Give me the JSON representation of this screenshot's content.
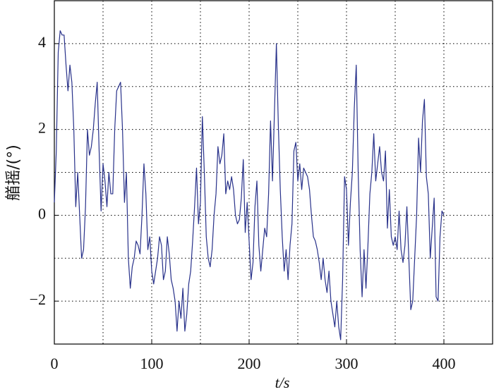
{
  "chart_data": {
    "type": "line",
    "xlabel": "t/s",
    "ylabel": "艏摇/(°)",
    "xlim": [
      0,
      450
    ],
    "ylim": [
      -3,
      5
    ],
    "xticks": [
      0,
      100,
      200,
      300,
      400
    ],
    "yticks": [
      -2,
      0,
      2,
      4
    ],
    "xgrid": [
      50,
      100,
      150,
      200,
      250,
      300,
      350,
      400
    ],
    "ygrid": [
      -2,
      -1,
      0,
      1,
      2,
      3,
      4
    ],
    "grid": true,
    "x": [
      0,
      2,
      4,
      6,
      8,
      10,
      12,
      14,
      16,
      18,
      20,
      22,
      24,
      26,
      28,
      30,
      32,
      34,
      36,
      38,
      40,
      42,
      44,
      46,
      48,
      50,
      52,
      54,
      56,
      58,
      60,
      62,
      64,
      66,
      68,
      70,
      72,
      74,
      76,
      78,
      80,
      82,
      84,
      86,
      88,
      90,
      92,
      94,
      96,
      98,
      100,
      102,
      104,
      106,
      108,
      110,
      112,
      114,
      116,
      118,
      120,
      122,
      124,
      126,
      128,
      130,
      132,
      134,
      136,
      138,
      140,
      142,
      144,
      146,
      148,
      150,
      152,
      154,
      156,
      158,
      160,
      162,
      164,
      166,
      168,
      170,
      172,
      174,
      176,
      178,
      180,
      182,
      184,
      186,
      188,
      190,
      192,
      194,
      196,
      198,
      200,
      202,
      204,
      206,
      208,
      210,
      212,
      214,
      216,
      218,
      220,
      222,
      224,
      226,
      228,
      230,
      232,
      234,
      236,
      238,
      240,
      242,
      244,
      246,
      248,
      250,
      252,
      254,
      256,
      258,
      260,
      262,
      264,
      266,
      268,
      270,
      272,
      274,
      276,
      278,
      280,
      282,
      284,
      286,
      288,
      290,
      292,
      294,
      296,
      298,
      300,
      302,
      304,
      306,
      308,
      310,
      312,
      314,
      316,
      318,
      320,
      322,
      324,
      326,
      328,
      330,
      332,
      334,
      336,
      338,
      340,
      342,
      344,
      346,
      348,
      350,
      352,
      354,
      356,
      358,
      360,
      362,
      364,
      366,
      368,
      370,
      372,
      374,
      376,
      378,
      380,
      382,
      384,
      386,
      388,
      390,
      392,
      394,
      396,
      398,
      400
    ],
    "series": [
      {
        "color": "#28318a",
        "values": [
          0.3,
          1.5,
          3.8,
          4.3,
          4.2,
          4.2,
          3.5,
          2.9,
          3.5,
          3.1,
          2.0,
          0.2,
          1.0,
          0.0,
          -1.0,
          -0.8,
          0.2,
          2.0,
          1.4,
          1.6,
          2.0,
          2.6,
          3.1,
          1.5,
          0.1,
          1.2,
          0.8,
          0.2,
          1.0,
          0.5,
          0.5,
          2.0,
          2.9,
          3.0,
          3.1,
          2.0,
          0.3,
          1.0,
          -1.0,
          -1.7,
          -1.2,
          -1.0,
          -0.6,
          -0.7,
          -0.9,
          0.0,
          1.2,
          0.5,
          -0.8,
          -0.5,
          -1.3,
          -1.6,
          -1.3,
          -1.0,
          -0.5,
          -0.7,
          -1.5,
          -1.3,
          -0.5,
          -0.9,
          -1.5,
          -1.7,
          -2.0,
          -2.7,
          -2.0,
          -2.4,
          -1.7,
          -2.7,
          -2.3,
          -1.6,
          -1.3,
          -0.6,
          0.2,
          1.1,
          -0.2,
          0.3,
          2.3,
          1.0,
          -0.5,
          -1.0,
          -1.2,
          -0.8,
          0.0,
          0.5,
          1.6,
          1.2,
          1.4,
          1.9,
          0.5,
          0.8,
          0.6,
          0.9,
          0.6,
          0.0,
          -0.2,
          -0.1,
          0.4,
          1.3,
          -0.4,
          0.3,
          -0.6,
          -1.5,
          -1.1,
          0.2,
          0.8,
          -0.7,
          -1.3,
          -0.8,
          -0.3,
          -0.5,
          0.5,
          2.2,
          0.8,
          2.4,
          4.0,
          2.1,
          0.6,
          -0.5,
          -1.3,
          -0.8,
          -1.5,
          -0.7,
          -0.2,
          1.5,
          1.7,
          0.8,
          1.2,
          0.6,
          1.1,
          1.0,
          0.9,
          0.6,
          0.0,
          -0.5,
          -0.6,
          -0.8,
          -1.1,
          -1.5,
          -1.0,
          -1.5,
          -1.8,
          -1.3,
          -2.0,
          -2.3,
          -2.6,
          -2.0,
          -2.6,
          -2.9,
          -1.5,
          0.9,
          0.6,
          -0.7,
          0.3,
          1.0,
          2.5,
          3.5,
          1.0,
          -0.8,
          -1.9,
          -0.8,
          -1.7,
          -0.7,
          0.5,
          1.0,
          1.9,
          0.8,
          1.2,
          1.6,
          1.0,
          0.8,
          1.5,
          -0.3,
          0.6,
          -0.5,
          -0.7,
          -0.5,
          -0.8,
          0.1,
          -0.8,
          -1.1,
          -0.7,
          0.2,
          -1.0,
          -2.2,
          -2.0,
          -1.0,
          0.0,
          1.8,
          1.0,
          2.2,
          2.7,
          0.9,
          0.5,
          -1.0,
          -0.3,
          0.4,
          -1.9,
          -2.0,
          -0.5,
          0.1,
          0.0
        ]
      }
    ]
  }
}
